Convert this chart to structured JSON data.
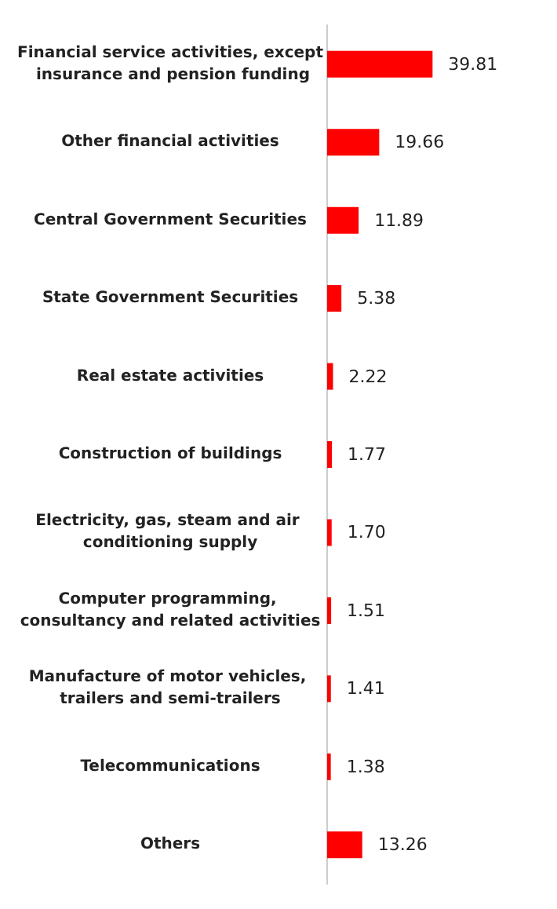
{
  "chart_data": {
    "type": "bar",
    "orientation": "horizontal",
    "categories": [
      "Financial service activities, except insurance and pension funding",
      "Other financial activities",
      "Central Government Securities",
      "State Government Securities",
      "Real estate activities",
      "Construction of buildings",
      "Electricity, gas, steam and air conditioning supply",
      "Computer programming, consultancy and related activities",
      "Manufacture of motor vehicles, trailers and semi-trailers",
      "Telecommunications",
      "Others"
    ],
    "values": [
      39.81,
      19.66,
      11.89,
      5.38,
      2.22,
      1.77,
      1.7,
      1.51,
      1.41,
      1.38,
      13.26
    ],
    "color": "#ff0000",
    "data_labels": true,
    "value_labels": [
      "39.81",
      "19.66",
      "11.89",
      "5.38",
      "2.22",
      "1.77",
      "1.70",
      "1.51",
      "1.41",
      "1.38",
      "13.26"
    ]
  }
}
